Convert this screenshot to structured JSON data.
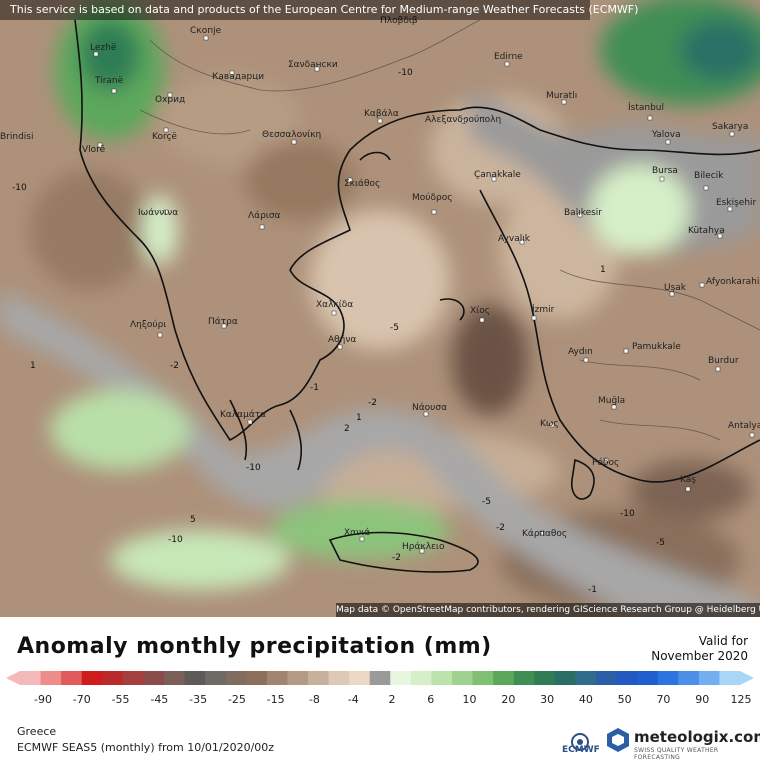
{
  "banner": "This service is based on data and products of the European Centre for Medium-range Weather Forecasts (ECMWF)",
  "attribution": "Map data © OpenStreetMap contributors, rendering GIScience Research Group @ Heidelberg University",
  "title": "Anomaly monthly precipitation (mm)",
  "valid_label": "Valid for",
  "valid_date": "November 2020",
  "region": "Greece",
  "model_line": "ECMWF SEAS5 (monthly)  from  10/01/2020/00z",
  "ecmwf_label": "ECMWF",
  "brand": {
    "name": "meteologix.com",
    "tagline": "SWISS QUALITY WEATHER FORECASTING"
  },
  "colors": {
    "dry_strong": "#d01b1b",
    "dry_brown": "#8c6f5a",
    "neutral": "#9a9a9a",
    "wet_green": "#3f8f55",
    "wet_blue": "#1f5fd0"
  },
  "scale": {
    "colors": [
      "#f4b9b9",
      "#ee8c8c",
      "#e35a5a",
      "#d01b1b",
      "#ba2a2a",
      "#a43f3f",
      "#8c4b4b",
      "#7a5f58",
      "#5e5a58",
      "#6e6a66",
      "#816d60",
      "#8c6f5a",
      "#a08470",
      "#b49a84",
      "#c7b19c",
      "#ddc9b6",
      "#ead8c5",
      "#9a9a9a",
      "#e8f5e0",
      "#d5efc8",
      "#bde3ad",
      "#9fd290",
      "#7fc073",
      "#5ba85c",
      "#3f8f55",
      "#2e7d55",
      "#2a6f66",
      "#2f6d8a",
      "#2a5ea6",
      "#2459c1",
      "#1f5fd0",
      "#2d74e0",
      "#4b8fe8",
      "#73aef0",
      "#a9d6f6"
    ],
    "ticks": [
      "-90",
      "-70",
      "-55",
      "-45",
      "-35",
      "-25",
      "-15",
      "-8",
      "-4",
      "2",
      "6",
      "10",
      "20",
      "30",
      "40",
      "50",
      "70",
      "90",
      "125"
    ]
  },
  "cities": [
    {
      "name": "Lezhë"
    },
    {
      "name": "Tiranë"
    },
    {
      "name": "Vlorë"
    },
    {
      "name": "Скопје"
    },
    {
      "name": "Кавадарци"
    },
    {
      "name": "Охрид"
    },
    {
      "name": "Korçë"
    },
    {
      "name": "Ιωάννινα"
    },
    {
      "name": "Θεσσαλονίκη"
    },
    {
      "name": "Καβάλα"
    },
    {
      "name": "Αλεξανδρούπολη"
    },
    {
      "name": "Σανδански"
    },
    {
      "name": "Edirne"
    },
    {
      "name": "Muratlı"
    },
    {
      "name": "İstanbul"
    },
    {
      "name": "Yalova"
    },
    {
      "name": "Sakarya"
    },
    {
      "name": "Bursa"
    },
    {
      "name": "Bilecik"
    },
    {
      "name": "Eskişehir"
    },
    {
      "name": "Kütahya"
    },
    {
      "name": "Çanakkale"
    },
    {
      "name": "Balıkesir"
    },
    {
      "name": "Ayvalık"
    },
    {
      "name": "Uşak"
    },
    {
      "name": "Afyonkarahisar"
    },
    {
      "name": "İzmir"
    },
    {
      "name": "Χίος"
    },
    {
      "name": "Μούδρος"
    },
    {
      "name": "Σκιάθος"
    },
    {
      "name": "Λάρισα"
    },
    {
      "name": "Χαλκίδα"
    },
    {
      "name": "Αθήνα"
    },
    {
      "name": "Πάτρα"
    },
    {
      "name": "Ληξούρι"
    },
    {
      "name": "Καλαμάτα"
    },
    {
      "name": "Νάουσα"
    },
    {
      "name": "Aydın"
    },
    {
      "name": "Pamukkale"
    },
    {
      "name": "Burdur"
    },
    {
      "name": "Muğla"
    },
    {
      "name": "Κως"
    },
    {
      "name": "Ρόδος"
    },
    {
      "name": "Kaş"
    },
    {
      "name": "Antalya"
    },
    {
      "name": "Χανιά"
    },
    {
      "name": "Ηράκλειο"
    },
    {
      "name": "Κάρπαθος"
    },
    {
      "name": "Brindisi"
    },
    {
      "name": "Πλοβδιβ"
    }
  ],
  "contour_labels": [
    "-10",
    "-10",
    "-10",
    "-10",
    "-5",
    "-5",
    "-5",
    "-2",
    "-2",
    "-2",
    "-2",
    "-1",
    "-1",
    "1",
    "1",
    "1",
    "2",
    "5",
    "-10"
  ]
}
